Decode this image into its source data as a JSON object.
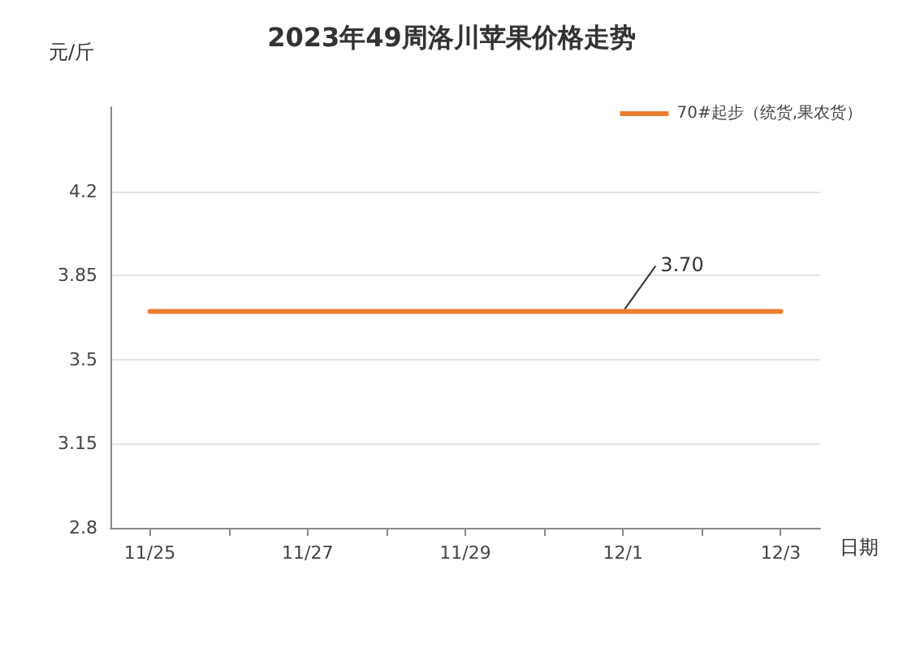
{
  "chart_data": {
    "type": "line",
    "title": "2023年49周洛川苹果价格走势",
    "ylabel": "元/斤",
    "xlabel": "日期",
    "categories": [
      "11/25",
      null,
      "11/27",
      null,
      "11/29",
      null,
      "12/1",
      null,
      "12/3"
    ],
    "series": [
      {
        "name": "70#起步（统货,果农货）",
        "color": "#ed7d31",
        "values": [
          3.7,
          3.7,
          3.7,
          3.7,
          3.7,
          3.7,
          3.7,
          3.7,
          3.7
        ]
      }
    ],
    "ylim": [
      2.8,
      4.55
    ],
    "yticks": [
      2.8,
      3.15,
      3.5,
      3.85,
      4.2
    ],
    "grid": "y",
    "legend": "top right",
    "marker": "none",
    "line_style": "solid",
    "annotations": [
      {
        "text": "3.70",
        "x": "12/1",
        "y": 3.7
      }
    ]
  }
}
